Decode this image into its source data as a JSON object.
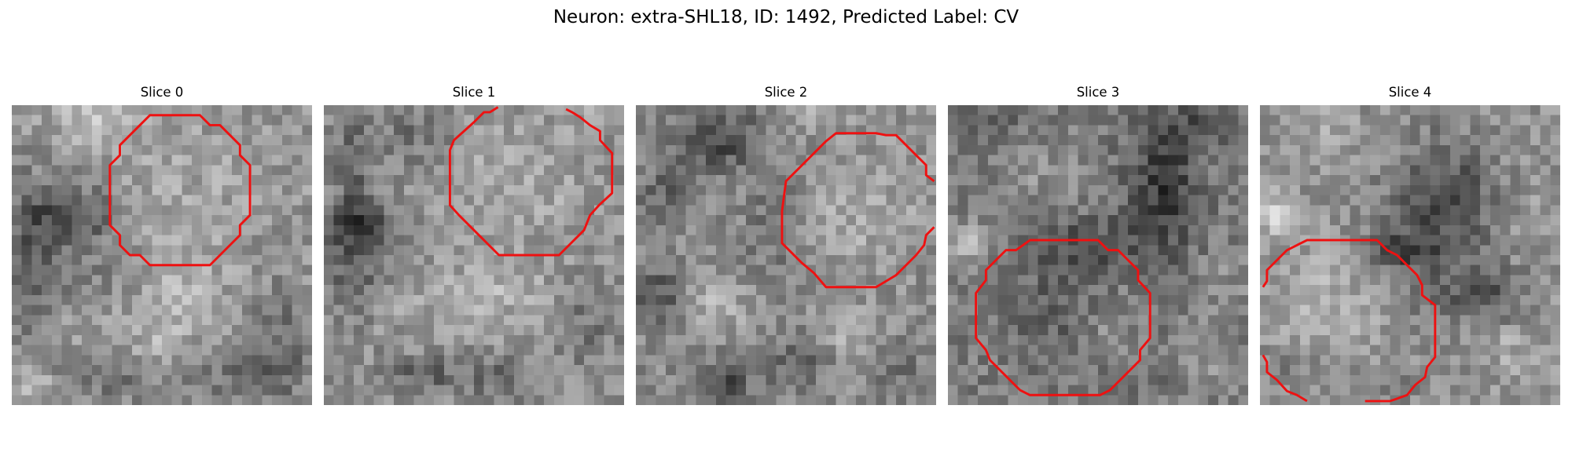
{
  "figure": {
    "suptitle": "Neuron: extra-SHL18, ID: 1492, Predicted Label: CV"
  },
  "panels": [
    {
      "title": "Slice 0"
    },
    {
      "title": "Slice 1"
    },
    {
      "title": "Slice 2"
    },
    {
      "title": "Slice 3"
    },
    {
      "title": "Slice 4"
    }
  ],
  "colors": {
    "contour": "#ee1111",
    "background": "#ffffff",
    "colormap": "grayscale"
  }
}
